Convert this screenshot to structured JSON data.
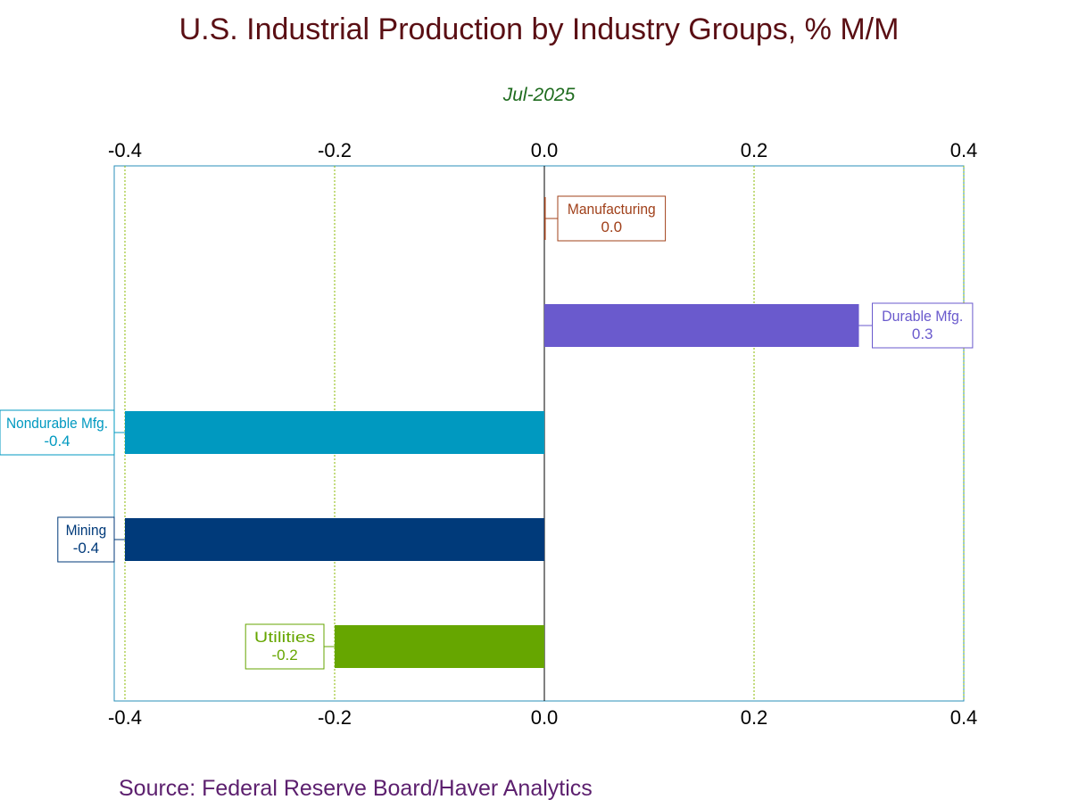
{
  "chart_data": {
    "type": "bar",
    "orientation": "horizontal",
    "title": "U.S. Industrial Production by Industry Groups, % M/M",
    "subtitle": "Jul-2025",
    "xlim": [
      -0.4,
      0.4
    ],
    "xticks": [
      -0.4,
      -0.2,
      0.0,
      0.2,
      0.4
    ],
    "xtick_labels": [
      "-0.4",
      "-0.2",
      "0.0",
      "0.2",
      "0.4"
    ],
    "grid": "vertical dotted",
    "categories": [
      "Manufacturing",
      "Durable Mfg.",
      "Nondurable Mfg.",
      "Mining",
      "Utilities"
    ],
    "values": [
      0.0,
      0.3,
      -0.4,
      -0.4,
      -0.2
    ],
    "value_labels": [
      "0.0",
      "0.3",
      "-0.4",
      "-0.4",
      "-0.2"
    ],
    "colors": [
      "#a0401a",
      "#6a5acd",
      "#0099c0",
      "#003a7a",
      "#66a600"
    ],
    "label_colors": [
      "#a0401a",
      "#6a5acd",
      "#0099c0",
      "#003a7a",
      "#66a600"
    ],
    "source": "Source:  Federal Reserve Board/Haver Analytics"
  }
}
